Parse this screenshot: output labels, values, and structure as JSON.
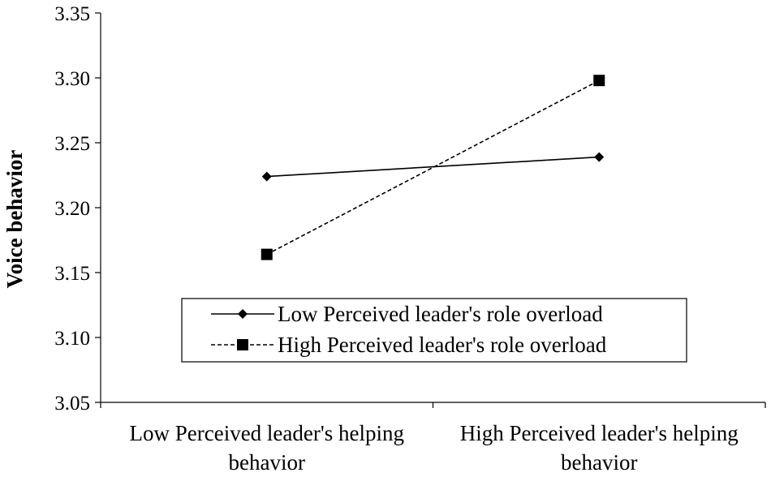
{
  "chart_data": {
    "type": "line",
    "categories": [
      [
        "Low Perceived leader's helping",
        "behavior"
      ],
      [
        "High Perceived leader's helping",
        "behavior"
      ]
    ],
    "ylabel": "Voice behavior",
    "ylim": [
      3.05,
      3.35
    ],
    "yticks": [
      "3.05",
      "3.10",
      "3.15",
      "3.20",
      "3.25",
      "3.30",
      "3.35"
    ],
    "legend_placement": "bottom-center inside plot",
    "series": [
      {
        "name": "Low Perceived leader's role overload",
        "values": [
          3.224,
          3.239
        ],
        "style": "solid",
        "marker": "diamond",
        "color": "#000000"
      },
      {
        "name": "High Perceived leader's role overload",
        "values": [
          3.164,
          3.298
        ],
        "style": "dashed",
        "marker": "square",
        "color": "#000000"
      }
    ]
  }
}
